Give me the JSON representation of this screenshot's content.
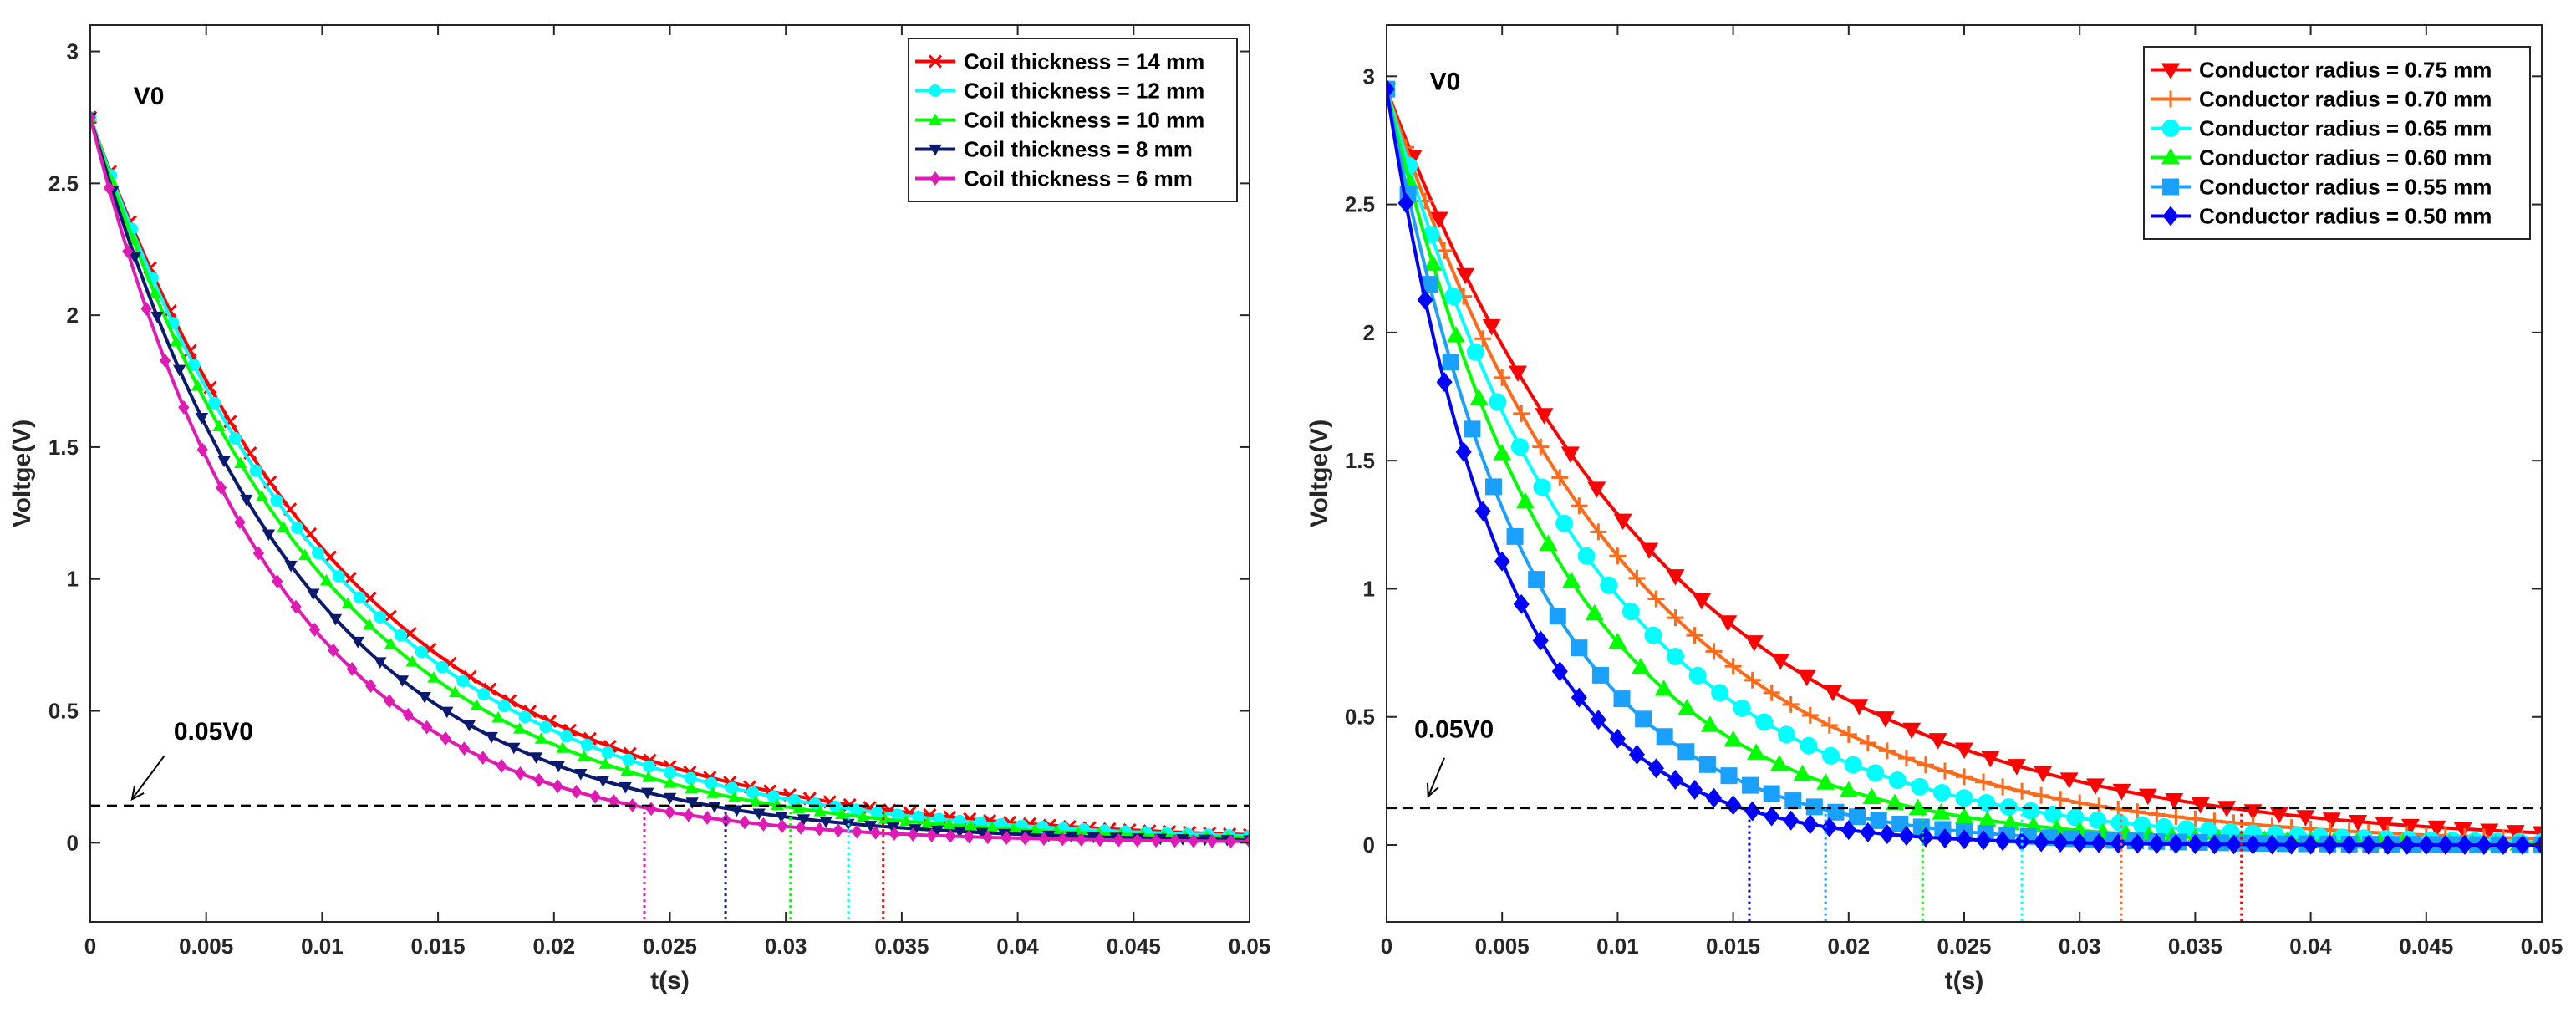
{
  "chart_data": [
    {
      "type": "line",
      "id": "left",
      "title": "",
      "xlabel": "t(s)",
      "ylabel": "Voltge(V)",
      "xlim": [
        0,
        0.05
      ],
      "ylim": [
        -0.3,
        3.1
      ],
      "xticks": [
        0,
        0.005,
        0.01,
        0.015,
        0.02,
        0.025,
        0.03,
        0.035,
        0.04,
        0.045,
        0.05
      ],
      "xtick_labels": [
        "0",
        "0.005",
        "0.01",
        "0.015",
        "0.02",
        "0.025",
        "0.03",
        "0.035",
        "0.04",
        "0.045",
        "0.05"
      ],
      "yticks": [
        0,
        0.5,
        1,
        1.5,
        2,
        2.5,
        3
      ],
      "ytick_labels": [
        "0",
        "0.5",
        "1",
        "1.5",
        "2",
        "2.5",
        "3"
      ],
      "legend_position": "top-right",
      "annotations": {
        "v0_label": "V0",
        "v0_at": [
          0.001,
          2.83
        ],
        "threshold_label": "0.05V0",
        "threshold_label_at": [
          0.0036,
          0.39
        ],
        "arrow_from": [
          0.0032,
          0.33
        ],
        "arrow_to": [
          0.0018,
          0.165
        ],
        "threshold_value": 0.14
      },
      "series": [
        {
          "name": "Coil thickness = 14 mm",
          "color": "#ff0000",
          "marker": "x",
          "V0": 2.75,
          "tau": 0.0111,
          "crossing": 0.0342,
          "x_end": 0.05,
          "marker_count": 58
        },
        {
          "name": "Coil thickness = 12 mm",
          "color": "#00ffff",
          "marker": "circle",
          "V0": 2.75,
          "tau": 0.0107,
          "crossing": 0.0327,
          "x_end": 0.05,
          "marker_count": 56
        },
        {
          "name": "Coil thickness = 10 mm",
          "color": "#00ff00",
          "marker": "triangle-up",
          "V0": 2.75,
          "tau": 0.01,
          "crossing": 0.0302,
          "x_end": 0.05,
          "marker_count": 54
        },
        {
          "name": "Coil thickness = 8 mm",
          "color": "#0a1a6e",
          "marker": "triangle-down",
          "V0": 2.75,
          "tau": 0.009,
          "crossing": 0.0274,
          "x_end": 0.05,
          "marker_count": 52
        },
        {
          "name": "Coil thickness = 6 mm",
          "color": "#e01ab5",
          "marker": "diamond",
          "V0": 2.75,
          "tau": 0.0079,
          "crossing": 0.0239,
          "x_end": 0.05,
          "marker_count": 62
        }
      ]
    },
    {
      "type": "line",
      "id": "right",
      "title": "",
      "xlabel": "t(s)",
      "ylabel": "Voltge(V)",
      "xlim": [
        0,
        0.05
      ],
      "ylim": [
        -0.3,
        3.2
      ],
      "xticks": [
        0,
        0.005,
        0.01,
        0.015,
        0.02,
        0.025,
        0.03,
        0.035,
        0.04,
        0.045,
        0.05
      ],
      "xtick_labels": [
        "0",
        "0.005",
        "0.01",
        "0.015",
        "0.02",
        "0.025",
        "0.03",
        "0.035",
        "0.04",
        "0.045",
        "0.05"
      ],
      "yticks": [
        0,
        0.5,
        1,
        1.5,
        2,
        2.5,
        3
      ],
      "ytick_labels": [
        "0",
        "0.5",
        "1",
        "1.5",
        "2",
        "2.5",
        "3"
      ],
      "legend_position": "top-right",
      "annotations": {
        "v0_label": "V0",
        "v0_at": [
          0.001,
          2.98
        ],
        "threshold_label": "0.05V0",
        "threshold_label_at": [
          0.0012,
          0.42
        ],
        "arrow_from": [
          0.0025,
          0.34
        ],
        "arrow_to": [
          0.0018,
          0.19
        ],
        "threshold_value": 0.145
      },
      "series": [
        {
          "name": "Conductor radius = 0.75 mm",
          "color": "#ff0000",
          "marker": "triangle-down",
          "V0": 2.95,
          "tau": 0.0121,
          "crossing": 0.037,
          "x_end": 0.05,
          "marker_count": 44
        },
        {
          "name": "Conductor radius = 0.70 mm",
          "color": "#ff6a1a",
          "marker": "plus",
          "V0": 2.95,
          "tau": 0.0104,
          "crossing": 0.0318,
          "x_end": 0.05,
          "marker_count": 60
        },
        {
          "name": "Conductor radius = 0.65 mm",
          "color": "#00ffff",
          "marker": "circle",
          "V0": 2.95,
          "tau": 0.009,
          "crossing": 0.0275,
          "x_end": 0.05,
          "marker_count": 52
        },
        {
          "name": "Conductor radius = 0.60 mm",
          "color": "#00ff00",
          "marker": "triangle-up",
          "V0": 2.95,
          "tau": 0.0076,
          "crossing": 0.0232,
          "x_end": 0.05,
          "marker_count": 50
        },
        {
          "name": "Conductor radius = 0.55 mm",
          "color": "#1aa0ff",
          "marker": "square",
          "V0": 2.95,
          "tau": 0.0062,
          "crossing": 0.019,
          "x_end": 0.05,
          "marker_count": 54
        },
        {
          "name": "Conductor radius = 0.50 mm",
          "color": "#0000ff",
          "marker": "diamond",
          "V0": 2.95,
          "tau": 0.0051,
          "crossing": 0.0157,
          "x_end": 0.05,
          "marker_count": 60
        }
      ]
    }
  ]
}
